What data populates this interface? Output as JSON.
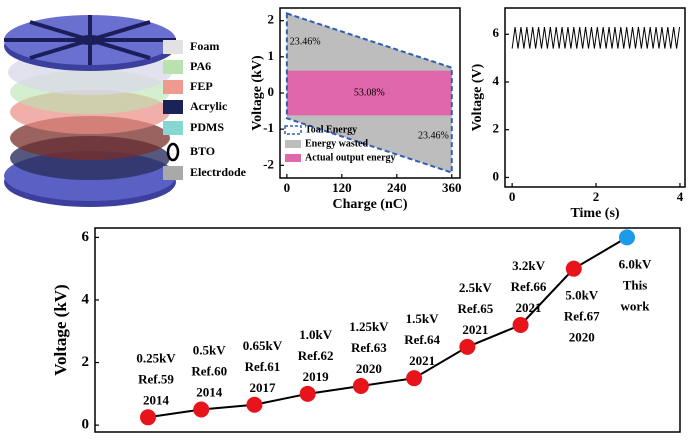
{
  "illustration": {
    "legend": [
      {
        "label": "Foam",
        "color": "#e2e2e2"
      },
      {
        "label": "PA6",
        "color": "#b9e2b0"
      },
      {
        "label": "FEP",
        "color": "#ef9a8f"
      },
      {
        "label": "Acrylic",
        "color": "#1b2356"
      },
      {
        "label": "PDMS",
        "color": "#86d6d2"
      },
      {
        "label": "BTO",
        "color": "#000000"
      },
      {
        "label": "Electrdode",
        "color": "#a9a9a9"
      }
    ]
  },
  "chart_data": [
    {
      "type": "area",
      "xlabel": "Charge (nC)",
      "ylabel": "Voltage (kV)",
      "xlim": [
        -15,
        378
      ],
      "xticks": [
        0,
        120,
        240,
        360
      ],
      "ylim": [
        -2.35,
        2.35
      ],
      "yticks": [
        -2,
        -1,
        0,
        1,
        2
      ],
      "series": [
        {
          "name": "Toal Energy",
          "color": "#2f5fb3",
          "x": [
            0,
            360,
            360,
            0
          ],
          "values": [
            2.2,
            0.7,
            -2.2,
            -0.7
          ]
        },
        {
          "name": "Energy wasted",
          "color": "#bdbdbd",
          "x": [
            0,
            360,
            360,
            0
          ],
          "values": [
            2.2,
            0.7,
            -2.2,
            -0.7
          ]
        },
        {
          "name": "Actual output energy",
          "color": "#e067ab",
          "x": [
            0,
            360,
            360,
            0
          ],
          "values": [
            0.62,
            0.62,
            -0.62,
            -0.62
          ]
        }
      ],
      "annotations": [
        "23.46%",
        "53.08%",
        "23.46%"
      ]
    },
    {
      "type": "line",
      "xlabel": "Time (s)",
      "ylabel": "Voltage (V)",
      "xlim": [
        -0.17,
        4.12
      ],
      "xticks": [
        0,
        2,
        4
      ],
      "ylim": [
        -0.4,
        7.1
      ],
      "yticks": [
        0,
        2,
        4,
        6
      ],
      "color": "#000000",
      "x": [
        0,
        0.07,
        0.14,
        0.21,
        0.28,
        0.35,
        0.42,
        0.49,
        0.56,
        0.63,
        0.7,
        0.77,
        0.84,
        0.91,
        0.98,
        1.05,
        1.12,
        1.19,
        1.26,
        1.33,
        1.4,
        1.47,
        1.54,
        1.61,
        1.68,
        1.75,
        1.82,
        1.89,
        1.96,
        2.03,
        2.1,
        2.17,
        2.24,
        2.31,
        2.38,
        2.45,
        2.52,
        2.59,
        2.66,
        2.73,
        2.8,
        2.87,
        2.94,
        3.01,
        3.08,
        3.15,
        3.22,
        3.29,
        3.36,
        3.43,
        3.5,
        3.57,
        3.64,
        3.71,
        3.78,
        3.85,
        3.92,
        3.99
      ],
      "values": [
        5.4,
        6.3,
        5.4,
        6.3,
        5.4,
        6.3,
        5.4,
        6.3,
        5.4,
        6.3,
        5.4,
        6.3,
        5.4,
        6.3,
        5.4,
        6.3,
        5.4,
        6.3,
        5.4,
        6.3,
        5.4,
        6.3,
        5.4,
        6.3,
        5.4,
        6.3,
        5.4,
        6.3,
        5.4,
        6.3,
        5.4,
        6.3,
        5.4,
        6.3,
        5.4,
        6.3,
        5.4,
        6.3,
        5.4,
        6.3,
        5.4,
        6.3,
        5.4,
        6.3,
        5.4,
        6.3,
        5.4,
        6.3,
        5.4,
        6.3,
        5.4,
        6.3,
        5.4,
        6.3,
        5.4,
        6.3,
        5.4,
        6.3
      ]
    },
    {
      "type": "dotline",
      "ylabel": "Voltage (kV)",
      "ylim": [
        -0.22,
        6.3
      ],
      "yticks": [
        0,
        2,
        4,
        6
      ],
      "color": "#000000",
      "values": [
        0.25,
        0.5,
        0.65,
        1.0,
        1.25,
        1.5,
        2.5,
        3.2,
        5.0,
        6.0
      ],
      "value_labels": [
        "0.25kV",
        "0.5kV",
        "0.65kV",
        "1.0kV",
        "1.25kV",
        "1.5kV",
        "2.5kV",
        "3.2kV",
        "5.0kV",
        "6.0kV"
      ],
      "annotations": [
        [
          "Ref.59",
          "2014"
        ],
        [
          "Ref.60",
          "2014"
        ],
        [
          "Ref.61",
          "2017"
        ],
        [
          "Ref.62",
          "2019"
        ],
        [
          "Ref.63",
          "2020"
        ],
        [
          "Ref.64",
          "2021"
        ],
        [
          "Ref.65",
          "2021"
        ],
        [
          "Ref.66",
          "2021"
        ],
        [
          "Ref.67",
          "2020"
        ],
        [
          "This",
          "work"
        ]
      ],
      "marker_colors": [
        "#e8141b",
        "#e8141b",
        "#e8141b",
        "#e8141b",
        "#e8141b",
        "#e8141b",
        "#e8141b",
        "#e8141b",
        "#e8141b",
        "#1e9be8"
      ]
    }
  ]
}
